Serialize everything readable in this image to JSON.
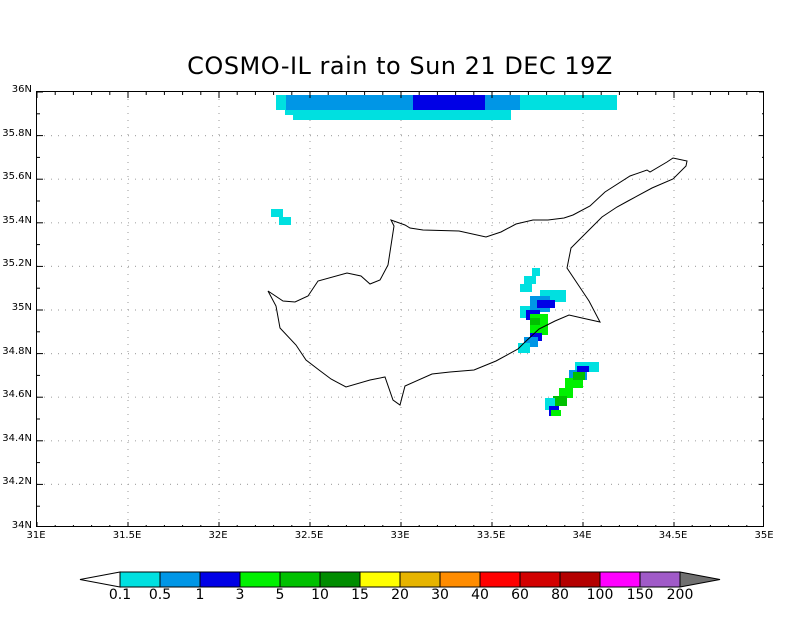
{
  "title": "COSMO-IL rain to Sun 21 DEC 19Z",
  "map": {
    "lon_range": [
      31,
      35
    ],
    "lat_range": [
      34,
      36
    ],
    "grid": "dotted",
    "x_ticks": [
      "31E",
      "31.5E",
      "32E",
      "32.5E",
      "33E",
      "33.5E",
      "34E",
      "34.5E",
      "35E"
    ],
    "y_ticks": [
      "34N",
      "34.2N",
      "34.4N",
      "34.6N",
      "34.8N",
      "35N",
      "35.2N",
      "35.4N",
      "35.6N",
      "35.8N",
      "36N"
    ]
  },
  "colorbar": {
    "labels": [
      "0.1",
      "0.5",
      "1",
      "3",
      "5",
      "10",
      "15",
      "20",
      "30",
      "40",
      "60",
      "80",
      "100",
      "150",
      "200"
    ],
    "colors": [
      "#ffffff",
      "#00e0e0",
      "#0096e6",
      "#0000e6",
      "#00f000",
      "#00c000",
      "#008c00",
      "#ffff00",
      "#e6b400",
      "#ff8c00",
      "#ff0000",
      "#d20000",
      "#b40000",
      "#ff00ff",
      "#a05ac8",
      "#707070"
    ]
  },
  "legend_colors": {
    "0.1": "#00e0e0",
    "0.5": "#0096e6",
    "1": "#0000e6",
    "3": "#00f000",
    "5": "#00c000",
    "10": "#008c00"
  }
}
